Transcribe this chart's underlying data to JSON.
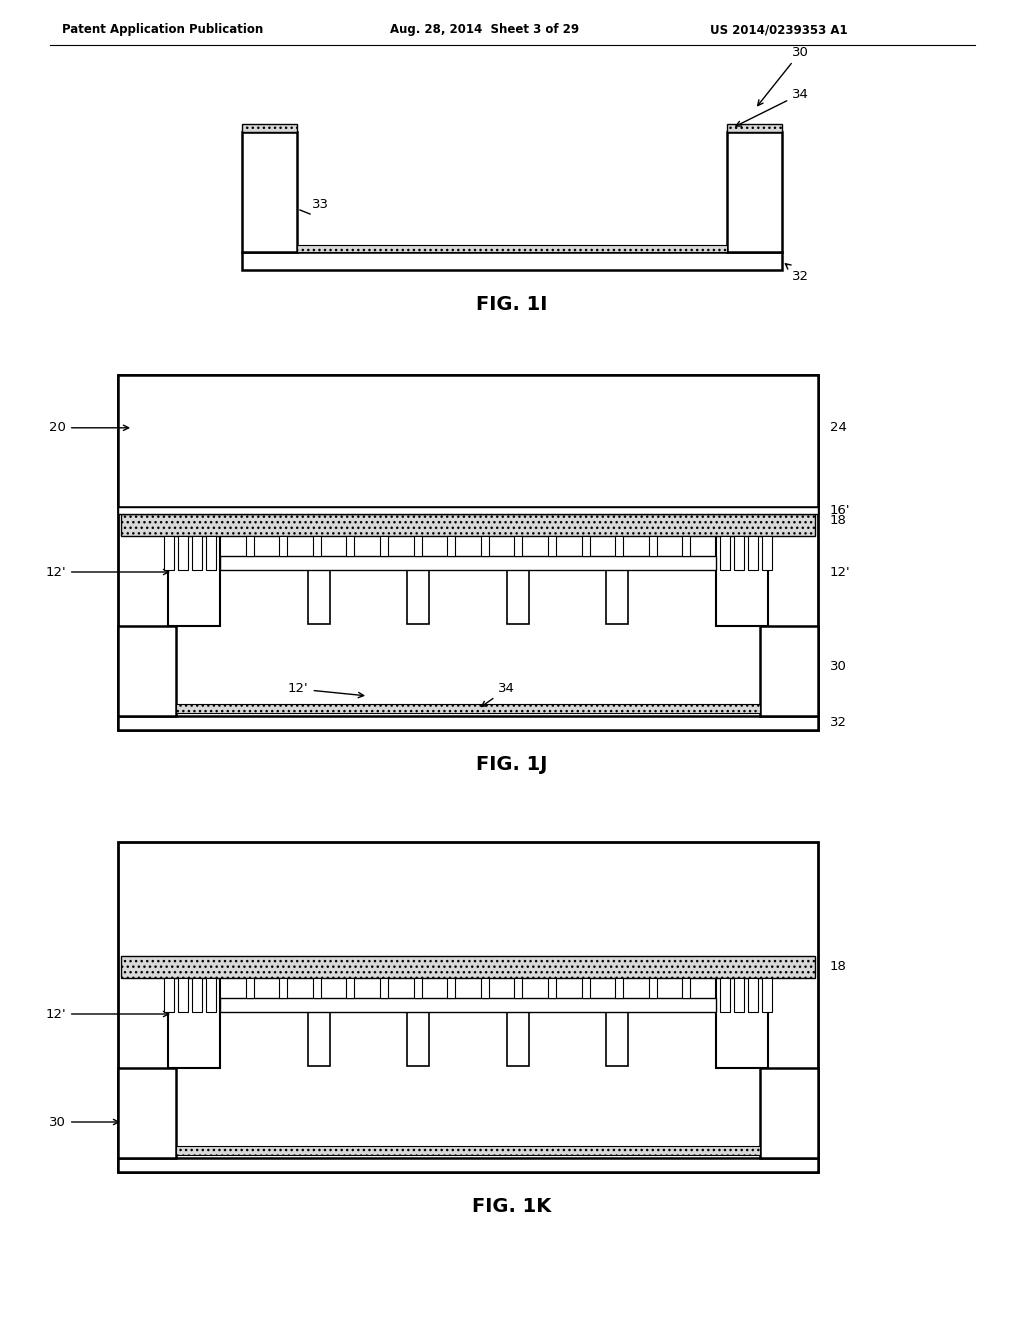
{
  "header_left": "Patent Application Publication",
  "header_mid": "Aug. 28, 2014  Sheet 3 of 29",
  "header_right": "US 2014/0239353 A1",
  "fig1i_label": "FIG. 1I",
  "fig1j_label": "FIG. 1J",
  "fig1k_label": "FIG. 1K",
  "bg_color": "#ffffff",
  "lc": "#000000",
  "dot_fc": "#d8d8d8"
}
